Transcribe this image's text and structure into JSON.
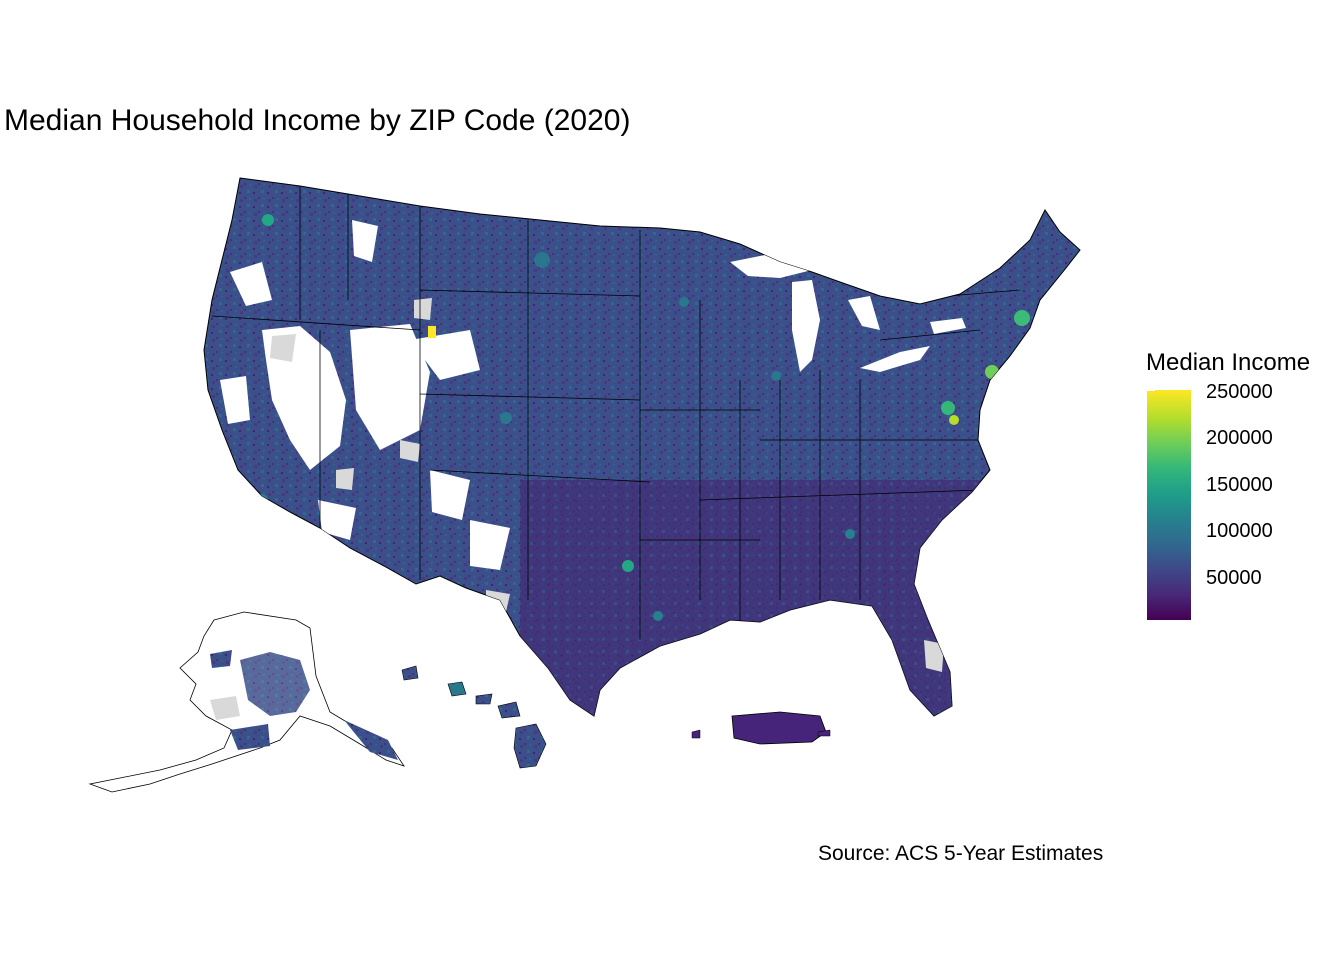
{
  "title": "Median Household Income by ZIP Code (2020)",
  "caption": "Source: ACS 5-Year Estimates",
  "legend": {
    "title": "Median Income",
    "ticks": [
      "250000",
      "200000",
      "150000",
      "100000",
      "50000"
    ],
    "tick_values": [
      250000,
      200000,
      150000,
      100000,
      50000
    ],
    "range": [
      2500,
      250000
    ],
    "colormap": "viridis",
    "colors": [
      "#440154",
      "#3e4989",
      "#26828e",
      "#35b779",
      "#fde725"
    ]
  },
  "map": {
    "regions": [
      "contiguous-us",
      "alaska",
      "hawaii",
      "puerto-rico"
    ],
    "fill_base": "#3b4f8a",
    "no_data_color": "#d9d9d9",
    "no_zip_color": "#ffffff",
    "border_color": "#000000"
  }
}
